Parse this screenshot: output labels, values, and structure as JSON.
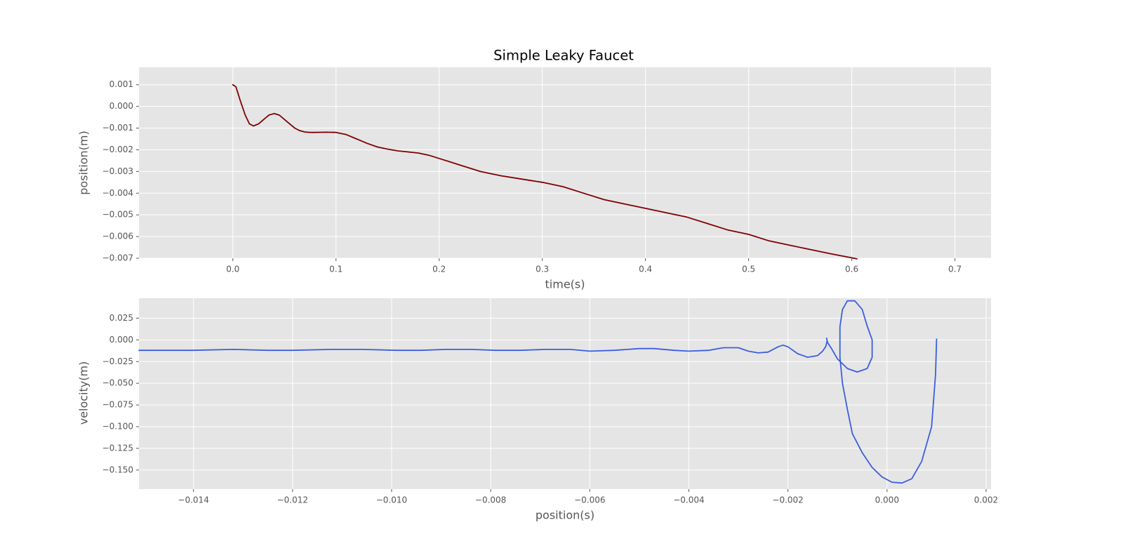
{
  "chart_data": [
    {
      "type": "line",
      "title": "Simple Leaky Faucet",
      "xlabel": "time(s)",
      "ylabel": "position(m)",
      "xlim": [
        -0.091,
        0.735
      ],
      "ylim": [
        -0.007,
        0.0018
      ],
      "grid": true,
      "x_ticks": [
        0.0,
        0.1,
        0.2,
        0.3,
        0.4,
        0.5,
        0.6,
        0.7
      ],
      "x_tick_labels": [
        "0.0",
        "0.1",
        "0.2",
        "0.3",
        "0.4",
        "0.5",
        "0.6",
        "0.7"
      ],
      "y_ticks": [
        0.001,
        0.0,
        -0.001,
        -0.002,
        -0.003,
        -0.004,
        -0.005,
        -0.006,
        -0.007
      ],
      "y_tick_labels": [
        "0.001",
        "0.000",
        "−0.001",
        "−0.002",
        "−0.003",
        "−0.004",
        "−0.005",
        "−0.006",
        "−0.007"
      ],
      "series": [
        {
          "color": "#800000",
          "x": [
            0.0,
            0.003,
            0.007,
            0.012,
            0.016,
            0.02,
            0.025,
            0.03,
            0.035,
            0.04,
            0.045,
            0.05,
            0.055,
            0.06,
            0.065,
            0.07,
            0.075,
            0.08,
            0.09,
            0.1,
            0.11,
            0.12,
            0.13,
            0.14,
            0.15,
            0.16,
            0.17,
            0.18,
            0.19,
            0.2,
            0.22,
            0.24,
            0.26,
            0.28,
            0.3,
            0.32,
            0.34,
            0.36,
            0.38,
            0.4,
            0.42,
            0.44,
            0.46,
            0.48,
            0.5,
            0.52,
            0.54,
            0.56,
            0.58,
            0.6,
            0.605
          ],
          "y": [
            0.001,
            0.0009,
            0.0003,
            -0.0004,
            -0.0008,
            -0.0009,
            -0.0008,
            -0.0006,
            -0.0004,
            -0.00033,
            -0.0004,
            -0.0006,
            -0.0008,
            -0.001,
            -0.00112,
            -0.00118,
            -0.0012,
            -0.0012,
            -0.00119,
            -0.0012,
            -0.0013,
            -0.0015,
            -0.0017,
            -0.00187,
            -0.00197,
            -0.00205,
            -0.0021,
            -0.00215,
            -0.00225,
            -0.0024,
            -0.0027,
            -0.003,
            -0.0032,
            -0.00335,
            -0.0035,
            -0.0037,
            -0.004,
            -0.0043,
            -0.0045,
            -0.0047,
            -0.0049,
            -0.0051,
            -0.0054,
            -0.0057,
            -0.0059,
            -0.0062,
            -0.0064,
            -0.0066,
            -0.0068,
            -0.00698,
            -0.00703
          ]
        }
      ]
    },
    {
      "type": "line",
      "title": "",
      "xlabel": "position(s)",
      "ylabel": "velocity(m)",
      "xlim": [
        -0.0151,
        0.0021
      ],
      "ylim": [
        -0.172,
        0.048
      ],
      "grid": true,
      "x_ticks": [
        -0.014,
        -0.012,
        -0.01,
        -0.008,
        -0.006,
        -0.004,
        -0.002,
        0.0,
        0.002
      ],
      "x_tick_labels": [
        "−0.014",
        "−0.012",
        "−0.010",
        "−0.008",
        "−0.006",
        "−0.004",
        "−0.002",
        "0.000",
        "0.002"
      ],
      "y_ticks": [
        0.025,
        0.0,
        -0.025,
        -0.05,
        -0.075,
        -0.1,
        -0.125,
        -0.15
      ],
      "y_tick_labels": [
        "0.025",
        "0.000",
        "−0.025",
        "−0.050",
        "−0.075",
        "−0.100",
        "−0.125",
        "−0.150"
      ],
      "series": [
        {
          "color": "#3b5fe0",
          "x": [
            0.001,
            0.00098,
            0.0009,
            0.0007,
            0.0005,
            0.0003,
            0.0001,
            -0.0001,
            -0.0003,
            -0.0005,
            -0.0007,
            -0.0008,
            -0.0009,
            -0.00095,
            -0.00095,
            -0.0009,
            -0.0008,
            -0.00065,
            -0.0005,
            -0.0004,
            -0.0003,
            -0.0003,
            -0.0004,
            -0.0006,
            -0.0008,
            -0.001,
            -0.00112,
            -0.0012,
            -0.00122,
            -0.00121,
            -0.00122,
            -0.00124,
            -0.0013,
            -0.0014,
            -0.0016,
            -0.0018,
            -0.002,
            -0.0021,
            -0.0022,
            -0.0024,
            -0.0026,
            -0.0028,
            -0.003,
            -0.0033,
            -0.0036,
            -0.004,
            -0.0043,
            -0.0047,
            -0.005,
            -0.0055,
            -0.006,
            -0.0064,
            -0.0069,
            -0.0074,
            -0.0079,
            -0.0084,
            -0.0089,
            -0.0094,
            -0.0099,
            -0.0106,
            -0.0112,
            -0.012,
            -0.0125,
            -0.0132,
            -0.014,
            -0.0151
          ],
          "y": [
            0.001,
            -0.04,
            -0.1,
            -0.14,
            -0.16,
            -0.165,
            -0.164,
            -0.158,
            -0.147,
            -0.13,
            -0.108,
            -0.08,
            -0.05,
            -0.02,
            0.015,
            0.035,
            0.045,
            0.045,
            0.035,
            0.016,
            0.0,
            -0.02,
            -0.033,
            -0.037,
            -0.033,
            -0.022,
            -0.01,
            -0.003,
            0.002,
            -0.001,
            -0.004,
            -0.008,
            -0.013,
            -0.018,
            -0.02,
            -0.016,
            -0.008,
            -0.006,
            -0.008,
            -0.014,
            -0.015,
            -0.013,
            -0.009,
            -0.009,
            -0.012,
            -0.013,
            -0.012,
            -0.01,
            -0.01,
            -0.012,
            -0.013,
            -0.011,
            -0.011,
            -0.012,
            -0.012,
            -0.011,
            -0.011,
            -0.012,
            -0.012,
            -0.011,
            -0.011,
            -0.012,
            -0.012,
            -0.011,
            -0.012,
            -0.012
          ]
        }
      ]
    }
  ]
}
